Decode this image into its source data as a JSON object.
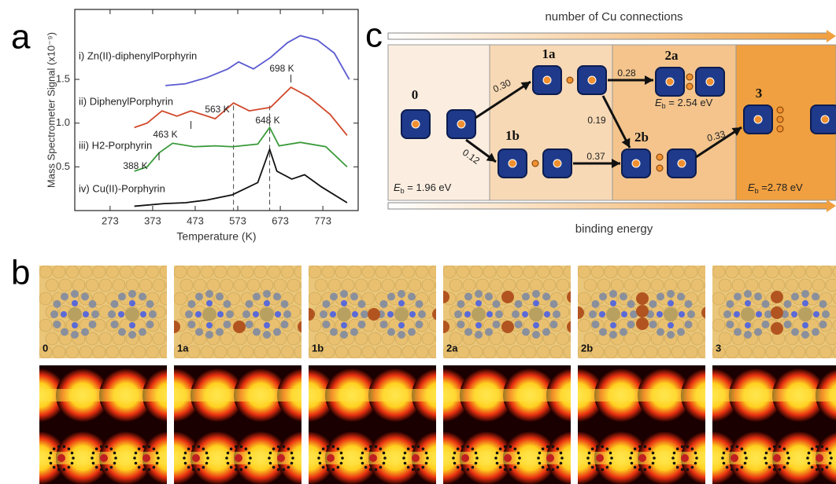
{
  "panel_letters": [
    "a",
    "b",
    "c"
  ],
  "panel_a": {
    "type": "line",
    "y_label": "Mass Spectrometer Signal (x10⁻⁹)",
    "x_label": "Temperature (K)",
    "xlim": [
      190,
      856
    ],
    "ylim": [
      0,
      2.3
    ],
    "xticks": [
      273,
      373,
      473,
      573,
      673,
      773
    ],
    "yticks": [
      0.5,
      {
        "value": 1,
        "label": "1.0"
      },
      1.5
    ],
    "dashed_lines": [
      563,
      648
    ],
    "series": [
      {
        "name": "i) Zn(II)-diphenylPorphyrin",
        "color": "#5a5ad0",
        "x": [
          403,
          450,
          500,
          550,
          575,
          610,
          650,
          690,
          720,
          760,
          800,
          835
        ],
        "values": [
          1.43,
          1.45,
          1.52,
          1.62,
          1.7,
          1.62,
          1.75,
          1.92,
          2.0,
          1.95,
          1.8,
          1.5
        ]
      },
      {
        "name": "ii) DiphenylPorphyrin",
        "color": "#d0482a",
        "x": [
          330,
          360,
          395,
          430,
          463,
          520,
          563,
          600,
          650,
          698,
          740,
          790,
          830
        ],
        "values": [
          0.95,
          1.0,
          1.14,
          1.08,
          1.14,
          1.05,
          1.23,
          1.14,
          1.18,
          1.41,
          1.3,
          1.1,
          0.86
        ]
      },
      {
        "name": "iii) H2-Porphyrin",
        "color": "#3a9a3a",
        "x": [
          330,
          360,
          388,
          420,
          470,
          520,
          560,
          620,
          648,
          670,
          720,
          780,
          830
        ],
        "values": [
          0.45,
          0.5,
          0.66,
          0.77,
          0.73,
          0.74,
          0.73,
          0.76,
          0.95,
          0.74,
          0.78,
          0.73,
          0.5
        ]
      },
      {
        "name": "iv) Cu(II)-Porphyrin",
        "color": "#111111",
        "x": [
          330,
          400,
          450,
          500,
          560,
          620,
          648,
          665,
          700,
          730,
          770,
          830
        ],
        "values": [
          0.05,
          0.08,
          0.09,
          0.12,
          0.18,
          0.32,
          0.7,
          0.45,
          0.36,
          0.41,
          0.27,
          0.09
        ]
      }
    ],
    "annotations": [
      "698 K",
      "563 K",
      "648 K",
      "463 K",
      "388 K"
    ]
  },
  "panel_c": {
    "top_label": "number of Cu connections",
    "bottom_label": "binding energy",
    "nodes": [
      "0",
      "1a",
      "1b",
      "2a",
      "2b",
      "3"
    ],
    "edges": [
      "0.30",
      "0.12",
      "0.28",
      "0.19",
      "0.37",
      "0.33"
    ],
    "eb_symbol": "E",
    "eb_subscript": "b",
    "energies": [
      " = 1.96 eV",
      " = 2.54 eV",
      " =2.78 eV"
    ]
  },
  "panel_b": {
    "labels": [
      "0",
      "1a",
      "1b",
      "2a",
      "2b",
      "3"
    ]
  }
}
